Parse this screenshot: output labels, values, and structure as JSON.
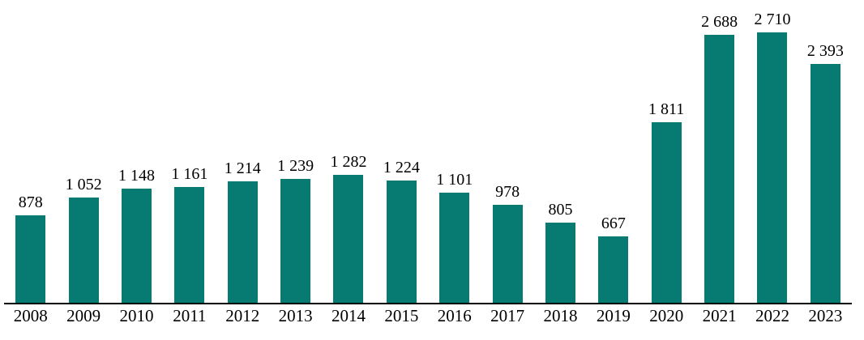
{
  "chart_data": {
    "type": "bar",
    "categories": [
      "2008",
      "2009",
      "2010",
      "2011",
      "2012",
      "2013",
      "2014",
      "2015",
      "2016",
      "2017",
      "2018",
      "2019",
      "2020",
      "2021",
      "2022",
      "2023"
    ],
    "values": [
      878,
      1052,
      1148,
      1161,
      1214,
      1239,
      1282,
      1224,
      1101,
      978,
      805,
      667,
      1811,
      2688,
      2710,
      2393
    ],
    "value_labels": [
      "878",
      "1 052",
      "1 148",
      "1 161",
      "1 214",
      "1 239",
      "1 282",
      "1 224",
      "1 101",
      "978",
      "805",
      "667",
      "1 811",
      "2 688",
      "2 710",
      "2 393"
    ],
    "title": "",
    "xlabel": "",
    "ylabel": "",
    "ylim": [
      0,
      2900
    ],
    "grid": false,
    "legend": false,
    "bar_color": "#077a72",
    "axis_color": "#000000",
    "label_color": "#000000"
  }
}
